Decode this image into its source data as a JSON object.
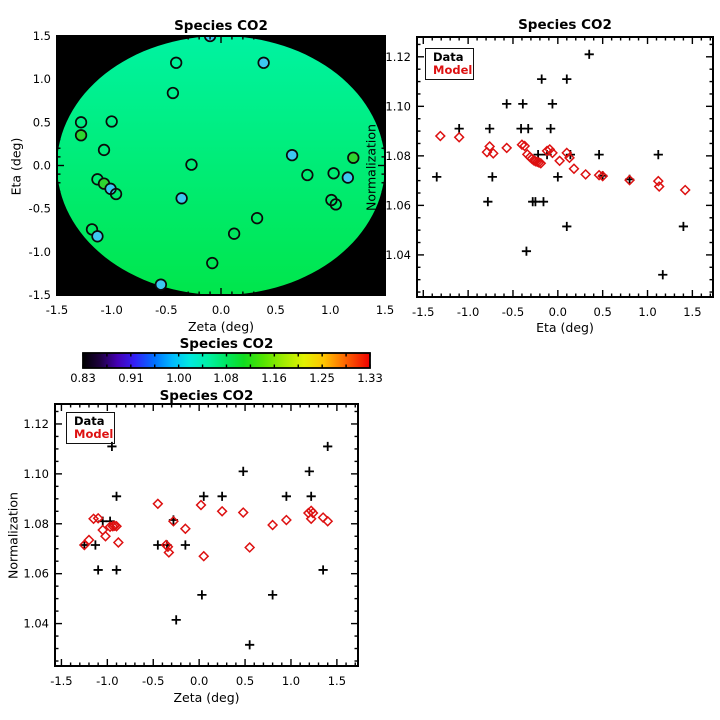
{
  "figure_background": "#FFFFFF",
  "colors": {
    "data_series": "#000000",
    "model_series": "#DD1111",
    "map_field": "#000000",
    "disk_top": "#00F3A2",
    "disk_bottom": "#00E64B",
    "circle_fill_cyan": "#3CC8F0",
    "circle_fill_green": "#2FD42F",
    "axis": "#000000"
  },
  "chart_data": [
    {
      "id": "sky_map",
      "type": "scatter",
      "title": "Species CO2",
      "xlabel": "Zeta (deg)",
      "ylabel": "Eta (deg)",
      "xlim": [
        -1.5,
        1.5
      ],
      "ylim": [
        -1.5,
        1.5
      ],
      "xticks": [
        -1.5,
        -1.0,
        -0.5,
        0.0,
        0.5,
        1.0,
        1.5
      ],
      "yticks": [
        -1.5,
        -1.0,
        -0.5,
        0.0,
        0.5,
        1.0,
        1.5
      ],
      "xtick_labels": [
        "-1.5",
        "-1.0",
        "-0.5",
        "0.0",
        "0.5",
        "1.0",
        "1.5"
      ],
      "ytick_labels": [
        "-1.5",
        "-1.0",
        "-0.5",
        "0.0",
        "0.5",
        "1.0",
        "1.5"
      ],
      "grid": false,
      "background": {
        "field": "black",
        "disk": {
          "cx": 0.0,
          "cy": 0.0,
          "radius": 1.5,
          "gradient_top": "#00F3A2",
          "gradient_bottom": "#00E64B"
        }
      },
      "points": [
        {
          "zeta": -0.1,
          "eta": 1.5,
          "fill": "cyan"
        },
        {
          "zeta": -0.41,
          "eta": 1.19,
          "fill": "open"
        },
        {
          "zeta": 0.39,
          "eta": 1.19,
          "fill": "cyan"
        },
        {
          "zeta": -0.44,
          "eta": 0.84,
          "fill": "open"
        },
        {
          "zeta": -1.28,
          "eta": 0.5,
          "fill": "open"
        },
        {
          "zeta": -1.0,
          "eta": 0.51,
          "fill": "open"
        },
        {
          "zeta": -1.28,
          "eta": 0.35,
          "fill": "green"
        },
        {
          "zeta": -1.07,
          "eta": 0.18,
          "fill": "open"
        },
        {
          "zeta": -0.27,
          "eta": 0.01,
          "fill": "open"
        },
        {
          "zeta": 0.65,
          "eta": 0.12,
          "fill": "cyan"
        },
        {
          "zeta": 1.21,
          "eta": 0.09,
          "fill": "green"
        },
        {
          "zeta": 0.79,
          "eta": -0.11,
          "fill": "open"
        },
        {
          "zeta": 1.03,
          "eta": -0.09,
          "fill": "open"
        },
        {
          "zeta": 1.16,
          "eta": -0.14,
          "fill": "cyan"
        },
        {
          "zeta": -1.13,
          "eta": -0.16,
          "fill": "open"
        },
        {
          "zeta": -1.07,
          "eta": -0.21,
          "fill": "green"
        },
        {
          "zeta": -1.01,
          "eta": -0.27,
          "fill": "cyan"
        },
        {
          "zeta": -0.96,
          "eta": -0.33,
          "fill": "open"
        },
        {
          "zeta": -0.36,
          "eta": -0.38,
          "fill": "cyan"
        },
        {
          "zeta": 1.01,
          "eta": -0.4,
          "fill": "open"
        },
        {
          "zeta": 1.05,
          "eta": -0.45,
          "fill": "open"
        },
        {
          "zeta": 0.33,
          "eta": -0.61,
          "fill": "open"
        },
        {
          "zeta": 0.12,
          "eta": -0.79,
          "fill": "open"
        },
        {
          "zeta": -1.18,
          "eta": -0.74,
          "fill": "open"
        },
        {
          "zeta": -1.13,
          "eta": -0.82,
          "fill": "cyan"
        },
        {
          "zeta": -0.08,
          "eta": -1.13,
          "fill": "open"
        },
        {
          "zeta": -0.55,
          "eta": -1.38,
          "fill": "cyan"
        }
      ]
    },
    {
      "id": "norm_vs_eta",
      "type": "scatter",
      "title": "Species CO2",
      "xlabel": "Eta (deg)",
      "ylabel": "Normalization",
      "xlim": [
        -1.57,
        1.73
      ],
      "ylim": [
        1.023,
        1.128
      ],
      "xticks": [
        -1.5,
        -1.0,
        -0.5,
        0.0,
        0.5,
        1.0,
        1.5
      ],
      "yticks": [
        1.04,
        1.06,
        1.08,
        1.1,
        1.12
      ],
      "xtick_labels": [
        "-1.5",
        "-1.0",
        "-0.5",
        "0.0",
        "0.5",
        "1.0",
        "1.5"
      ],
      "ytick_labels": [
        "1.04",
        "1.06",
        "1.08",
        "1.10",
        "1.12"
      ],
      "grid": false,
      "legend": {
        "position": "top-left",
        "entries": [
          {
            "label": "Data",
            "color": "#000000"
          },
          {
            "label": "Model",
            "color": "#DD1111"
          }
        ]
      },
      "series": [
        {
          "name": "Data",
          "marker": "plus",
          "color": "#000000",
          "points": [
            [
              -1.35,
              1.0715
            ],
            [
              -1.1,
              1.091
            ],
            [
              -0.78,
              1.0615
            ],
            [
              -0.76,
              1.091
            ],
            [
              -0.73,
              1.0715
            ],
            [
              -0.57,
              1.101
            ],
            [
              -0.41,
              1.091
            ],
            [
              -0.39,
              1.101
            ],
            [
              -0.35,
              1.0415
            ],
            [
              -0.33,
              1.091
            ],
            [
              -0.28,
              1.0615
            ],
            [
              -0.25,
              1.0615
            ],
            [
              -0.22,
              1.0805
            ],
            [
              -0.18,
              1.111
            ],
            [
              -0.16,
              1.0615
            ],
            [
              -0.12,
              1.0805
            ],
            [
              -0.08,
              1.091
            ],
            [
              -0.06,
              1.101
            ],
            [
              0.0,
              1.0715
            ],
            [
              0.1,
              1.111
            ],
            [
              0.1,
              1.0515
            ],
            [
              0.14,
              1.0805
            ],
            [
              0.35,
              1.121
            ],
            [
              0.46,
              1.0805
            ],
            [
              0.5,
              1.072
            ],
            [
              0.8,
              1.0705
            ],
            [
              1.12,
              1.0805
            ],
            [
              1.17,
              1.032
            ],
            [
              1.4,
              1.0515
            ]
          ]
        },
        {
          "name": "Model",
          "marker": "diamond",
          "color": "#DD1111",
          "points": [
            [
              -1.31,
              1.088
            ],
            [
              -1.1,
              1.0875
            ],
            [
              -0.79,
              1.0815
            ],
            [
              -0.76,
              1.0838
            ],
            [
              -0.72,
              1.081
            ],
            [
              -0.57,
              1.0832
            ],
            [
              -0.4,
              1.0845
            ],
            [
              -0.37,
              1.084
            ],
            [
              -0.34,
              1.0806
            ],
            [
              -0.31,
              1.0795
            ],
            [
              -0.29,
              1.0788
            ],
            [
              -0.27,
              1.0782
            ],
            [
              -0.25,
              1.0778
            ],
            [
              -0.23,
              1.0776
            ],
            [
              -0.21,
              1.0773
            ],
            [
              -0.19,
              1.077
            ],
            [
              -0.12,
              1.082
            ],
            [
              -0.09,
              1.0826
            ],
            [
              -0.06,
              1.0812
            ],
            [
              0.02,
              1.078
            ],
            [
              0.1,
              1.0812
            ],
            [
              0.13,
              1.0792
            ],
            [
              0.18,
              1.0748
            ],
            [
              0.31,
              1.0725
            ],
            [
              0.46,
              1.0722
            ],
            [
              0.5,
              1.0718
            ],
            [
              0.8,
              1.0702
            ],
            [
              1.12,
              1.0698
            ],
            [
              1.13,
              1.0676
            ],
            [
              1.42,
              1.0662
            ]
          ]
        }
      ]
    },
    {
      "id": "colorbar",
      "type": "colorbar",
      "title": "Species CO2",
      "tick_labels": [
        "0.83",
        "0.91",
        "1.00",
        "1.08",
        "1.16",
        "1.25",
        "1.33"
      ],
      "gradient": [
        [
          0.0,
          "#000000"
        ],
        [
          0.06,
          "#1E0040"
        ],
        [
          0.12,
          "#4400B4"
        ],
        [
          0.18,
          "#3320F6"
        ],
        [
          0.25,
          "#0072FF"
        ],
        [
          0.31,
          "#00B8FF"
        ],
        [
          0.37,
          "#00E8E0"
        ],
        [
          0.44,
          "#00F0A0"
        ],
        [
          0.5,
          "#00E660"
        ],
        [
          0.56,
          "#10DC20"
        ],
        [
          0.63,
          "#55E400"
        ],
        [
          0.7,
          "#A2EC00"
        ],
        [
          0.77,
          "#E2F200"
        ],
        [
          0.84,
          "#FFC400"
        ],
        [
          0.91,
          "#FF6A00"
        ],
        [
          1.0,
          "#EF0000"
        ]
      ]
    },
    {
      "id": "norm_vs_zeta",
      "type": "scatter",
      "title": "Species CO2",
      "xlabel": "Zeta (deg)",
      "ylabel": "Normalization",
      "xlim": [
        -1.57,
        1.73
      ],
      "ylim": [
        1.023,
        1.128
      ],
      "xticks": [
        -1.5,
        -1.0,
        -0.5,
        0.0,
        0.5,
        1.0,
        1.5
      ],
      "yticks": [
        1.04,
        1.06,
        1.08,
        1.1,
        1.12
      ],
      "xtick_labels": [
        "-1.5",
        "-1.0",
        "-0.5",
        "0.0",
        "0.5",
        "1.0",
        "1.5"
      ],
      "ytick_labels": [
        "1.04",
        "1.06",
        "1.08",
        "1.10",
        "1.12"
      ],
      "grid": false,
      "legend": {
        "position": "top-left",
        "entries": [
          {
            "label": "Data",
            "color": "#000000"
          },
          {
            "label": "Model",
            "color": "#DD1111"
          }
        ]
      },
      "series": [
        {
          "name": "Data",
          "marker": "plus",
          "color": "#000000",
          "points": [
            [
              -1.25,
              1.0715
            ],
            [
              -1.13,
              1.0715
            ],
            [
              -1.1,
              1.0615
            ],
            [
              -1.05,
              1.081
            ],
            [
              -0.97,
              1.081
            ],
            [
              -0.95,
              1.111
            ],
            [
              -0.9,
              1.091
            ],
            [
              -0.9,
              1.0615
            ],
            [
              -0.45,
              1.0715
            ],
            [
              -0.35,
              1.0715
            ],
            [
              -0.28,
              1.0815
            ],
            [
              -0.25,
              1.0415
            ],
            [
              -0.15,
              1.0715
            ],
            [
              0.03,
              1.0515
            ],
            [
              0.05,
              1.091
            ],
            [
              0.25,
              1.091
            ],
            [
              0.48,
              1.101
            ],
            [
              0.55,
              1.0315
            ],
            [
              0.8,
              1.0515
            ],
            [
              0.95,
              1.091
            ],
            [
              1.2,
              1.101
            ],
            [
              1.22,
              1.091
            ],
            [
              1.35,
              1.0615
            ],
            [
              1.4,
              1.111
            ]
          ]
        },
        {
          "name": "Model",
          "marker": "diamond",
          "color": "#DD1111",
          "points": [
            [
              -1.25,
              1.0715
            ],
            [
              -1.2,
              1.0735
            ],
            [
              -1.15,
              1.082
            ],
            [
              -1.1,
              1.0822
            ],
            [
              -1.05,
              1.0775
            ],
            [
              -1.02,
              1.075
            ],
            [
              -0.97,
              1.0788
            ],
            [
              -0.94,
              1.079
            ],
            [
              -0.92,
              1.0792
            ],
            [
              -0.9,
              1.079
            ],
            [
              -0.88,
              1.0725
            ],
            [
              -0.45,
              1.088
            ],
            [
              -0.36,
              1.0715
            ],
            [
              -0.34,
              1.0708
            ],
            [
              -0.33,
              1.0685
            ],
            [
              -0.28,
              1.081
            ],
            [
              -0.15,
              1.078
            ],
            [
              0.02,
              1.0875
            ],
            [
              0.05,
              1.067
            ],
            [
              0.25,
              1.085
            ],
            [
              0.48,
              1.0845
            ],
            [
              0.55,
              1.0705
            ],
            [
              0.8,
              1.0795
            ],
            [
              0.95,
              1.0815
            ],
            [
              1.19,
              1.0843
            ],
            [
              1.22,
              1.0852
            ],
            [
              1.24,
              1.0843
            ],
            [
              1.22,
              1.082
            ],
            [
              1.35,
              1.0825
            ],
            [
              1.4,
              1.081
            ]
          ]
        }
      ]
    }
  ]
}
